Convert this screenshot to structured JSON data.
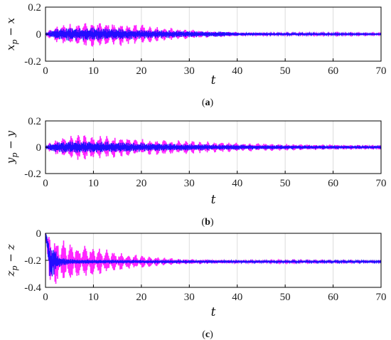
{
  "colors": {
    "reference_series": "#0a0aff",
    "perturbed_series": "#ff00ff",
    "grid": "#dcdcdc",
    "axis": "#000000"
  },
  "chart_data": [
    {
      "type": "line",
      "caption": "(a)",
      "xlabel": "t",
      "ylabel": "x_p − x",
      "xlim": [
        0,
        70
      ],
      "ylim": [
        -0.2,
        0.2
      ],
      "xticks": [
        0,
        10,
        20,
        30,
        40,
        50,
        60,
        70
      ],
      "yticks": [
        0.2,
        0,
        -0.2
      ],
      "grid": true,
      "series": [
        {
          "color": "#ff00ff",
          "envelope": [
            [
              0,
              0
            ],
            [
              1,
              0.04
            ],
            [
              2,
              0.06
            ],
            [
              5,
              0.08
            ],
            [
              8,
              0.09
            ],
            [
              10,
              0.1
            ],
            [
              12,
              0.1
            ],
            [
              15,
              0.09
            ],
            [
              20,
              0.07
            ],
            [
              25,
              0.05
            ],
            [
              30,
              0.035
            ],
            [
              35,
              0.025
            ],
            [
              39,
              0.02
            ],
            [
              40,
              0.015
            ],
            [
              50,
              0.01
            ],
            [
              60,
              0.008
            ],
            [
              70,
              0.006
            ]
          ]
        },
        {
          "color": "#0a0aff",
          "envelope": [
            [
              0,
              0
            ],
            [
              1,
              0.03
            ],
            [
              2,
              0.045
            ],
            [
              5,
              0.05
            ],
            [
              10,
              0.05
            ],
            [
              15,
              0.045
            ],
            [
              20,
              0.035
            ],
            [
              30,
              0.025
            ],
            [
              38,
              0.018
            ],
            [
              40,
              0.012
            ],
            [
              50,
              0.008
            ],
            [
              60,
              0.006
            ],
            [
              70,
              0.004
            ]
          ]
        }
      ]
    },
    {
      "type": "line",
      "caption": "(b)",
      "xlabel": "t",
      "ylabel": "y_p − y",
      "xlim": [
        0,
        70
      ],
      "ylim": [
        -0.2,
        0.2
      ],
      "xticks": [
        0,
        10,
        20,
        30,
        40,
        50,
        60,
        70
      ],
      "yticks": [
        0.2,
        0,
        -0.2
      ],
      "grid": true,
      "series": [
        {
          "color": "#ff00ff",
          "envelope": [
            [
              0,
              0
            ],
            [
              1,
              0.04
            ],
            [
              3,
              0.07
            ],
            [
              6,
              0.1
            ],
            [
              9,
              0.1
            ],
            [
              12,
              0.09
            ],
            [
              15,
              0.08
            ],
            [
              20,
              0.065
            ],
            [
              30,
              0.05
            ],
            [
              40,
              0.035
            ],
            [
              50,
              0.025
            ],
            [
              60,
              0.02
            ],
            [
              70,
              0.018
            ]
          ]
        },
        {
          "color": "#0a0aff",
          "envelope": [
            [
              0,
              0
            ],
            [
              1,
              0.03
            ],
            [
              3,
              0.045
            ],
            [
              8,
              0.05
            ],
            [
              15,
              0.04
            ],
            [
              20,
              0.035
            ],
            [
              30,
              0.025
            ],
            [
              40,
              0.02
            ],
            [
              50,
              0.015
            ],
            [
              60,
              0.012
            ],
            [
              70,
              0.01
            ]
          ]
        }
      ]
    },
    {
      "type": "line",
      "caption": "(c)",
      "xlabel": "t",
      "ylabel": "z_p − z",
      "xlim": [
        0,
        70
      ],
      "ylim": [
        -0.4,
        0
      ],
      "xticks": [
        0,
        10,
        20,
        30,
        40,
        50,
        60,
        70
      ],
      "yticks": [
        0,
        -0.2,
        -0.4
      ],
      "grid": true,
      "baseline": -0.21,
      "series": [
        {
          "color": "#ff00ff",
          "envelope": [
            [
              0,
              0
            ],
            [
              1,
              0.18
            ],
            [
              1.5,
              0.2
            ],
            [
              3,
              0.17
            ],
            [
              5,
              0.14
            ],
            [
              8,
              0.12
            ],
            [
              12,
              0.1
            ],
            [
              15,
              0.07
            ],
            [
              20,
              0.05
            ],
            [
              25,
              0.03
            ],
            [
              30,
              0.02
            ],
            [
              40,
              0.012
            ],
            [
              50,
              0.008
            ],
            [
              60,
              0.006
            ],
            [
              70,
              0.005
            ]
          ]
        },
        {
          "color": "#0a0aff",
          "envelope": [
            [
              0,
              0
            ],
            [
              0.8,
              0.15
            ],
            [
              1.5,
              0.12
            ],
            [
              3,
              0.04
            ],
            [
              5,
              0.02
            ],
            [
              10,
              0.015
            ],
            [
              20,
              0.012
            ],
            [
              30,
              0.01
            ],
            [
              40,
              0.009
            ],
            [
              50,
              0.008
            ],
            [
              60,
              0.007
            ],
            [
              70,
              0.006
            ]
          ]
        }
      ]
    }
  ]
}
